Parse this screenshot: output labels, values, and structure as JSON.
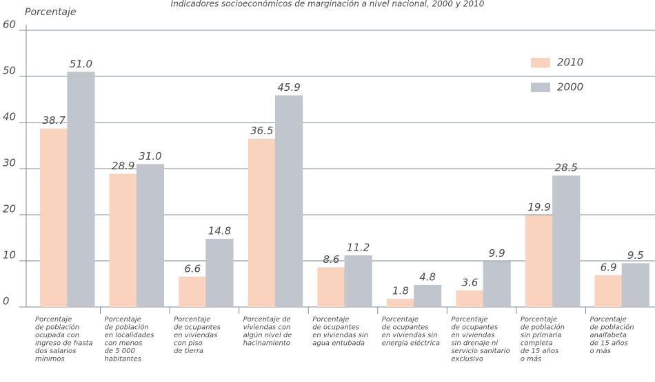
{
  "chart_data": {
    "type": "bar",
    "title": "Indicadores socioeconómicos de marginación a nivel nacional, 2000 y 2010",
    "y_label": "Porcentaje",
    "categories": [
      [
        "Porcentaje",
        "de población",
        "ocupada con",
        "ingreso de hasta",
        "dos salarios",
        "mínimos"
      ],
      [
        "Porcentaje",
        "de población",
        "en localidades",
        "con menos",
        "de 5 000",
        "habitantes"
      ],
      [
        "Porcentaje",
        "de ocupantes",
        "en viviendas",
        "con piso",
        "de tierra"
      ],
      [
        "Porcentaje de",
        "viviendas con",
        "algún nivel de",
        "hacinamiento"
      ],
      [
        "Porcentaje",
        "de ocupantes",
        "en viviendas sin",
        "agua entubada"
      ],
      [
        "Porcentaje",
        "de ocupantes",
        "en viviendas sin",
        "energía eléctrica"
      ],
      [
        "Porcentaje",
        "de ocupantes",
        "en viviendas",
        "sin drenaje ni",
        "servicio sanitario",
        "exclusivo"
      ],
      [
        "Porcentaje",
        "de población",
        "sin primaria",
        "completa",
        "de 15 años",
        "o más"
      ],
      [
        "Porcentaje",
        "de población",
        "analfabeta",
        "de 15 años",
        "o más"
      ]
    ],
    "series": [
      {
        "name": "2010",
        "color": "#f9d3bd",
        "values": [
          38.7,
          28.9,
          6.6,
          36.5,
          8.6,
          1.8,
          3.6,
          19.9,
          6.9
        ],
        "value_labels": [
          "38.7",
          "28.9",
          "6.6",
          "36.5",
          "8.6",
          "1.8",
          "3.6",
          "19.9",
          "6.9"
        ]
      },
      {
        "name": "2000",
        "color": "#c1c6cc",
        "values": [
          51.0,
          31.0,
          14.8,
          45.9,
          11.2,
          4.8,
          9.9,
          28.5,
          9.5
        ],
        "value_labels": [
          "51.0",
          "31.0",
          "14.8",
          "45.9",
          "11.2",
          "4.8",
          "9.9",
          "28.5",
          "9.5"
        ]
      }
    ],
    "ylim": [
      0,
      60
    ],
    "yticks": [
      0,
      10,
      20,
      30,
      40,
      50,
      60
    ],
    "grid": true,
    "legend": "upper right"
  }
}
